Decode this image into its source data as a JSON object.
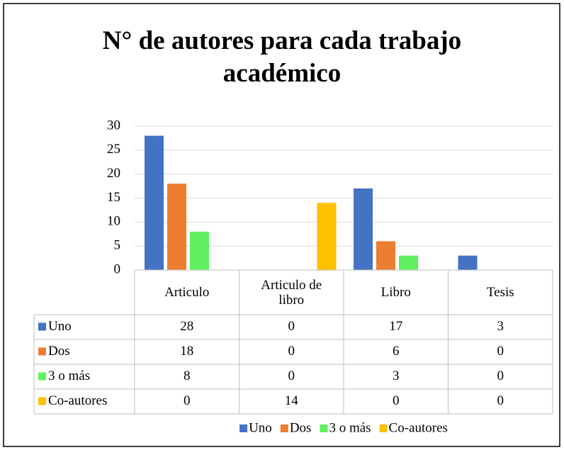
{
  "chart_data": {
    "type": "bar",
    "title": "N° de autores para cada trabajo académico",
    "categories": [
      "Articulo",
      "Articulo de libro",
      "Libro",
      "Tesis"
    ],
    "series": [
      {
        "name": "Uno",
        "color": "#4472c4",
        "values": [
          28,
          0,
          17,
          3
        ]
      },
      {
        "name": "Dos",
        "color": "#ed7d31",
        "values": [
          18,
          0,
          6,
          0
        ]
      },
      {
        "name": "3 o más",
        "color": "#5ef05e",
        "values": [
          8,
          0,
          3,
          0
        ]
      },
      {
        "name": "Co-autores",
        "color": "#ffc000",
        "values": [
          0,
          14,
          0,
          0
        ]
      }
    ],
    "ylim": [
      0,
      30
    ],
    "yticks": [
      0,
      5,
      10,
      15,
      20,
      25,
      30
    ],
    "grid": true,
    "legend": "bottom",
    "data_table": true
  }
}
